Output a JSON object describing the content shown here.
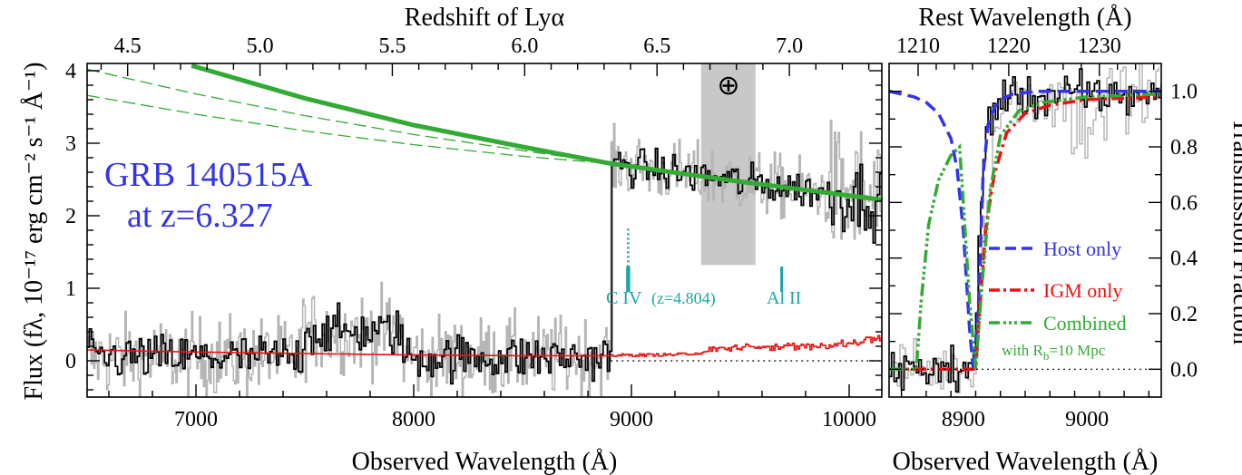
{
  "chart_data": [
    {
      "type": "line",
      "panel": "main",
      "xlabel": "Observed Wavelength (Å)",
      "ylabel": "Flux (fλ,  10⁻¹⁷ erg cm⁻² s⁻¹ Å⁻¹)",
      "top_axis_label": "Redshift of Lyα",
      "xlim": [
        6500,
        10150
      ],
      "ylim": [
        -0.5,
        4.1
      ],
      "x_ticks": [
        "7000",
        "8000",
        "9000",
        "10000"
      ],
      "y_ticks": [
        "0",
        "1",
        "2",
        "3",
        "4"
      ],
      "top_ticks": [
        "4.5",
        "5.0",
        "5.5",
        "6.0",
        "6.5",
        "7.0"
      ],
      "annotation": {
        "line1": "GRB 140515A",
        "line2": "at z=6.327"
      },
      "telluric_symbol": "⊕",
      "telluric_band": [
        9320,
        9570
      ],
      "absorbers": {
        "civ_label": "C IV",
        "z_label": "(z=4.804)",
        "alii_label": "Al II",
        "civ_x": 8985,
        "alii_x": 9690
      },
      "lya_break": 8905,
      "series": [
        {
          "role": "model_fit",
          "color": "#33aa33",
          "x": [
            6980,
            7500,
            8000,
            8500,
            8905,
            9500,
            10150
          ],
          "y": [
            4.07,
            3.62,
            3.25,
            2.95,
            2.72,
            2.47,
            2.22
          ]
        },
        {
          "role": "fit_upper",
          "color": "#33aa33",
          "x": [
            6500,
            7000,
            7500,
            8000,
            8500,
            8905
          ],
          "y": [
            4.02,
            3.68,
            3.38,
            3.12,
            2.9,
            2.72
          ]
        },
        {
          "role": "fit_lower",
          "color": "#33aa33",
          "x": [
            6500,
            7000,
            7500,
            8000,
            8500,
            8905
          ],
          "y": [
            3.66,
            3.4,
            3.17,
            2.98,
            2.82,
            2.72
          ]
        },
        {
          "role": "error_spectrum",
          "color": "#ee1111",
          "x": [
            6500,
            7000,
            7500,
            8000,
            8500,
            8900,
            9200,
            9400,
            9600,
            9800,
            10000,
            10150
          ],
          "y": [
            0.15,
            0.12,
            0.1,
            0.08,
            0.07,
            0.07,
            0.08,
            0.12,
            0.15,
            0.15,
            0.2,
            0.28
          ]
        }
      ]
    },
    {
      "type": "line",
      "panel": "zoom",
      "xlabel": "Observed Wavelength (Å)",
      "ylabel": "Transmission Fraction",
      "top_axis_label": "Rest Wavelength (Å)",
      "xlim": [
        8840,
        9060
      ],
      "ylim": [
        -0.1,
        1.1
      ],
      "x_ticks": [
        "8900",
        "9000"
      ],
      "y_ticks": [
        "0.0",
        "0.2",
        "0.4",
        "0.6",
        "0.8",
        "1.0"
      ],
      "top_ticks": [
        "1210",
        "1220",
        "1230"
      ],
      "legend": [
        {
          "label": "Host only",
          "color": "#3333ee"
        },
        {
          "label": "IGM only",
          "color": "#ee1111"
        },
        {
          "label": "Combined",
          "color": "#33aa33"
        }
      ],
      "legend_note_prefix": "with R",
      "legend_note_sub": "b",
      "legend_note_suffix": "=10 Mpc",
      "series": [
        {
          "name": "Host only",
          "color": "#3333ee",
          "x": [
            8840,
            8860,
            8870,
            8880,
            8890,
            8895,
            8900,
            8905,
            8908,
            8912,
            8916,
            8920,
            8925,
            8930,
            8940,
            8960,
            9000,
            9060
          ],
          "y": [
            1.0,
            0.98,
            0.96,
            0.92,
            0.83,
            0.72,
            0.5,
            0.15,
            0.0,
            0.2,
            0.7,
            0.88,
            0.94,
            0.97,
            0.99,
            1.0,
            1.0,
            1.0
          ]
        },
        {
          "name": "IGM only",
          "color": "#ee1111",
          "x": [
            8840,
            8905,
            8910,
            8913,
            8918,
            8925,
            8935,
            8950,
            8970,
            9000,
            9060
          ],
          "y": [
            0.0,
            0.0,
            0.0,
            0.2,
            0.5,
            0.7,
            0.85,
            0.92,
            0.95,
            0.97,
            0.98
          ]
        },
        {
          "name": "Combined",
          "color": "#33aa33",
          "x": [
            8840,
            8862,
            8866,
            8872,
            8880,
            8890,
            8897,
            8900,
            8905,
            8910,
            8915,
            8922,
            8930,
            8945,
            8965,
            9000,
            9060
          ],
          "y": [
            0.0,
            0.0,
            0.25,
            0.52,
            0.68,
            0.77,
            0.8,
            0.6,
            0.25,
            0.0,
            0.3,
            0.65,
            0.84,
            0.93,
            0.96,
            0.98,
            0.99
          ]
        }
      ]
    }
  ]
}
